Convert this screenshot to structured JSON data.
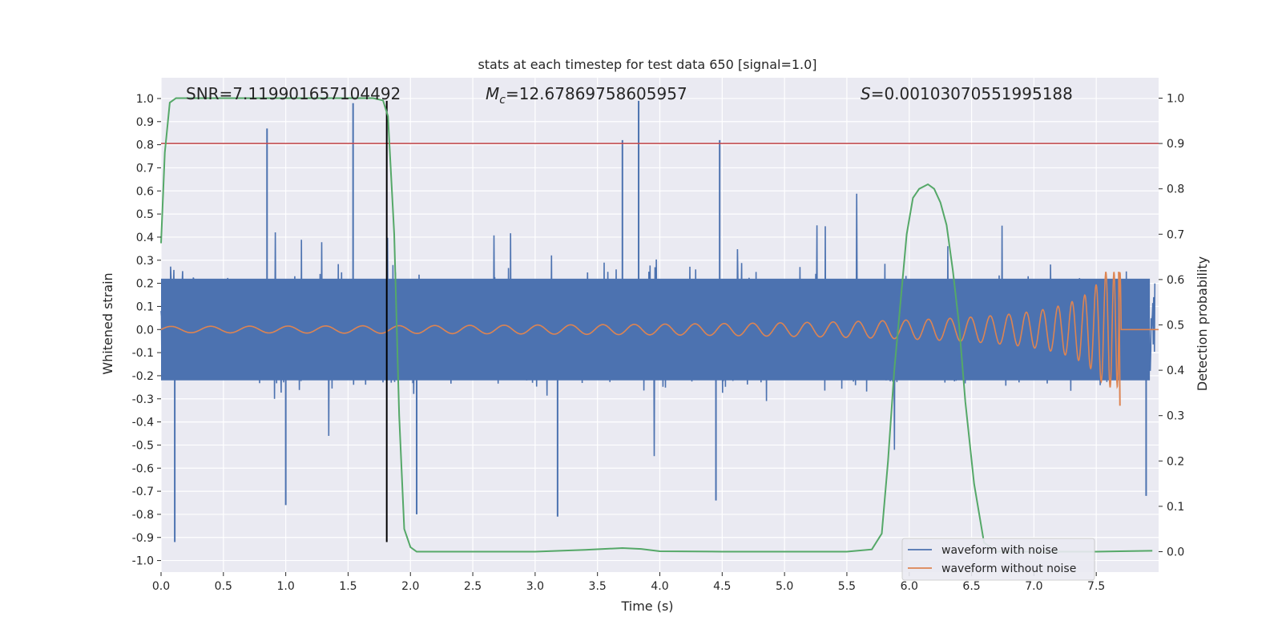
{
  "chart_data": {
    "type": "line",
    "title": "stats at each timestep for test data 650 [signal=1.0]",
    "xlabel": "Time (s)",
    "ylabel": "Whitened strain",
    "y2label": "Detection probability",
    "xlim": [
      0.0,
      8.0
    ],
    "ylim": [
      -1.05,
      1.09
    ],
    "y2lim": [
      -0.045,
      1.045
    ],
    "x_ticks": [
      "0.0",
      "0.5",
      "1.0",
      "1.5",
      "2.0",
      "2.5",
      "3.0",
      "3.5",
      "4.0",
      "4.5",
      "5.0",
      "5.5",
      "6.0",
      "6.5",
      "7.0",
      "7.5"
    ],
    "y_ticks": [
      "-1.0",
      "-0.9",
      "-0.8",
      "-0.7",
      "-0.6",
      "-0.5",
      "-0.4",
      "-0.3",
      "-0.2",
      "-0.1",
      "0.0",
      "0.1",
      "0.2",
      "0.3",
      "0.4",
      "0.5",
      "0.6",
      "0.7",
      "0.8",
      "0.9",
      "1.0"
    ],
    "y2_ticks": [
      "0.0",
      "0.1",
      "0.2",
      "0.3",
      "0.4",
      "0.5",
      "0.6",
      "0.7",
      "0.8",
      "0.9",
      "1.0"
    ],
    "grid": true,
    "legend_position": "lower right",
    "annotations": {
      "snr": "SNR=7.119901657104492",
      "mc_symbol": "M",
      "mc_sub": "c",
      "mc_value": "=12.67869758605957",
      "s_symbol": "S",
      "s_value": "=0.00103070551995188"
    },
    "series": [
      {
        "name": "waveform with noise",
        "color": "#4c72b0",
        "description_points": "noise band approx ±0.25 core with spikes to ±0.5–0.9",
        "notable_spikes": [
          [
            0.11,
            -0.92
          ],
          [
            0.85,
            0.87
          ],
          [
            1.54,
            0.98
          ],
          [
            1.0,
            -0.76
          ],
          [
            3.83,
            0.99
          ],
          [
            3.7,
            0.82
          ],
          [
            4.48,
            0.82
          ],
          [
            3.18,
            -0.81
          ],
          [
            2.05,
            -0.8
          ],
          [
            4.45,
            -0.74
          ],
          [
            7.9,
            -0.72
          ]
        ]
      },
      {
        "name": "waveform without noise",
        "color": "#dd8452",
        "chirp": {
          "start": 0.0,
          "merger": 7.7,
          "end": 8.0,
          "start_amplitude": 0.01,
          "peak_amplitude": 0.25,
          "min_amplitude": -0.33
        }
      },
      {
        "name": "detection probability",
        "color": "#55a868",
        "axis": "right",
        "x": [
          0.0,
          0.03,
          0.07,
          0.12,
          0.2,
          0.5,
          1.0,
          1.5,
          1.7,
          1.78,
          1.82,
          1.87,
          1.91,
          1.95,
          2.0,
          2.05,
          2.1,
          2.5,
          3.0,
          3.4,
          3.7,
          3.85,
          4.0,
          4.5,
          5.0,
          5.5,
          5.7,
          5.78,
          5.83,
          5.88,
          5.93,
          5.98,
          6.03,
          6.08,
          6.15,
          6.2,
          6.25,
          6.3,
          6.35,
          6.4,
          6.45,
          6.52,
          6.6,
          6.7,
          7.0,
          7.5,
          7.95
        ],
        "y": [
          0.68,
          0.88,
          0.99,
          1.0,
          1.0,
          1.0,
          1.0,
          1.0,
          1.0,
          0.995,
          0.96,
          0.7,
          0.3,
          0.05,
          0.01,
          0.0,
          0.0,
          0.0,
          0.0,
          0.004,
          0.008,
          0.006,
          0.001,
          0.0,
          0.0,
          0.0,
          0.005,
          0.04,
          0.2,
          0.4,
          0.55,
          0.7,
          0.78,
          0.8,
          0.81,
          0.8,
          0.77,
          0.72,
          0.62,
          0.5,
          0.33,
          0.15,
          0.02,
          0.0,
          0.0,
          0.0,
          0.002
        ]
      }
    ],
    "threshold_line": {
      "axis": "right",
      "value": 0.9,
      "color": "#c44e52"
    },
    "vertical_marker": {
      "x": 1.81,
      "y_from": -0.92,
      "y_to": 0.99,
      "color": "#000000"
    }
  }
}
